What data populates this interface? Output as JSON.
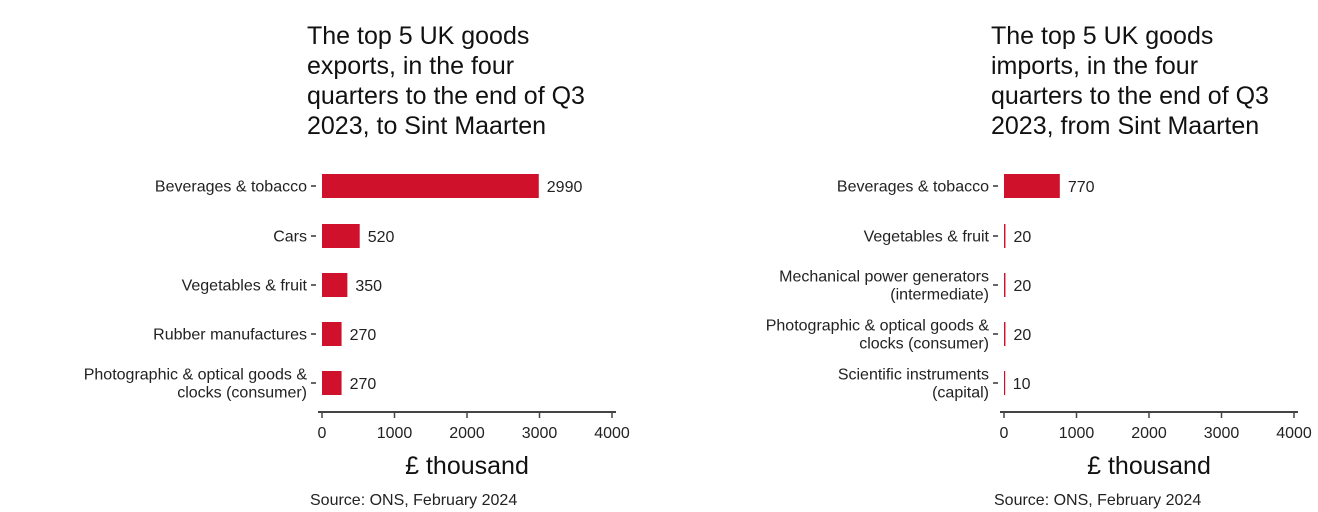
{
  "chart_data": [
    {
      "type": "bar",
      "orientation": "horizontal",
      "title": "The top 5 UK goods exports, in the four quarters to the end of Q3 2023, to Sint Maarten",
      "title_lines": [
        "The top 5 UK goods",
        "exports, in the four",
        "quarters to the end of Q3",
        "2023, to Sint Maarten"
      ],
      "categories": [
        [
          "Beverages & tobacco"
        ],
        [
          "Cars"
        ],
        [
          "Vegetables & fruit"
        ],
        [
          "Rubber manufactures"
        ],
        [
          "Photographic & optical goods &",
          "clocks (consumer)"
        ]
      ],
      "values": [
        2990,
        520,
        350,
        270,
        270
      ],
      "xlabel": "£ thousand",
      "ylabel": "",
      "xlim": [
        0,
        4000
      ],
      "xticks": [
        0,
        1000,
        2000,
        3000,
        4000
      ],
      "source": "Source: ONS, February 2024",
      "grid": false,
      "bar_color": "#d0112b"
    },
    {
      "type": "bar",
      "orientation": "horizontal",
      "title": "The top 5 UK goods imports, in the four quarters to the end of Q3 2023, from Sint Maarten",
      "title_lines": [
        "The top 5 UK goods",
        "imports, in the four",
        "quarters to the end of Q3",
        "2023, from Sint Maarten"
      ],
      "categories": [
        [
          "Beverages & tobacco"
        ],
        [
          "Vegetables & fruit"
        ],
        [
          "Mechanical power generators",
          "(intermediate)"
        ],
        [
          "Photographic & optical goods &",
          "clocks (consumer)"
        ],
        [
          "Scientific instruments",
          "(capital)"
        ]
      ],
      "values": [
        770,
        20,
        20,
        20,
        10
      ],
      "xlabel": "£ thousand",
      "ylabel": "",
      "xlim": [
        0,
        4000
      ],
      "xticks": [
        0,
        1000,
        2000,
        3000,
        4000
      ],
      "source": "Source: ONS, February 2024",
      "grid": false,
      "bar_color": "#d0112b"
    }
  ]
}
